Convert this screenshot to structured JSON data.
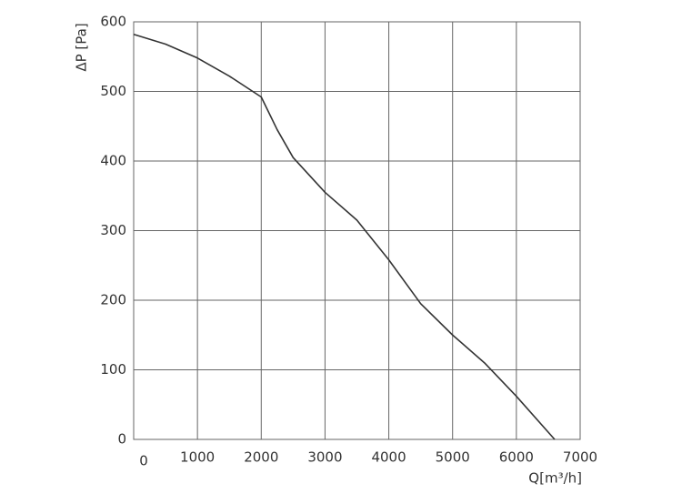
{
  "chart_data": {
    "type": "line",
    "x_label": "Q[m³/h]",
    "y_label": "ΔP [Pa]",
    "x": [
      0,
      500,
      1000,
      1500,
      2000,
      2250,
      2500,
      3000,
      3500,
      4000,
      4500,
      5000,
      5500,
      6000,
      6600
    ],
    "series": [
      {
        "color": "#333333",
        "values": [
          582,
          568,
          548,
          522,
          492,
          445,
          405,
          355,
          315,
          258,
          195,
          150,
          110,
          62,
          0
        ]
      }
    ],
    "xlim": [
      0,
      7000
    ],
    "xticks": [
      0,
      1000,
      2000,
      3000,
      4000,
      5000,
      6000,
      7000
    ],
    "ylim": [
      0,
      600
    ],
    "yticks": [
      0,
      100,
      200,
      300,
      400,
      500,
      600
    ],
    "grid": true
  }
}
